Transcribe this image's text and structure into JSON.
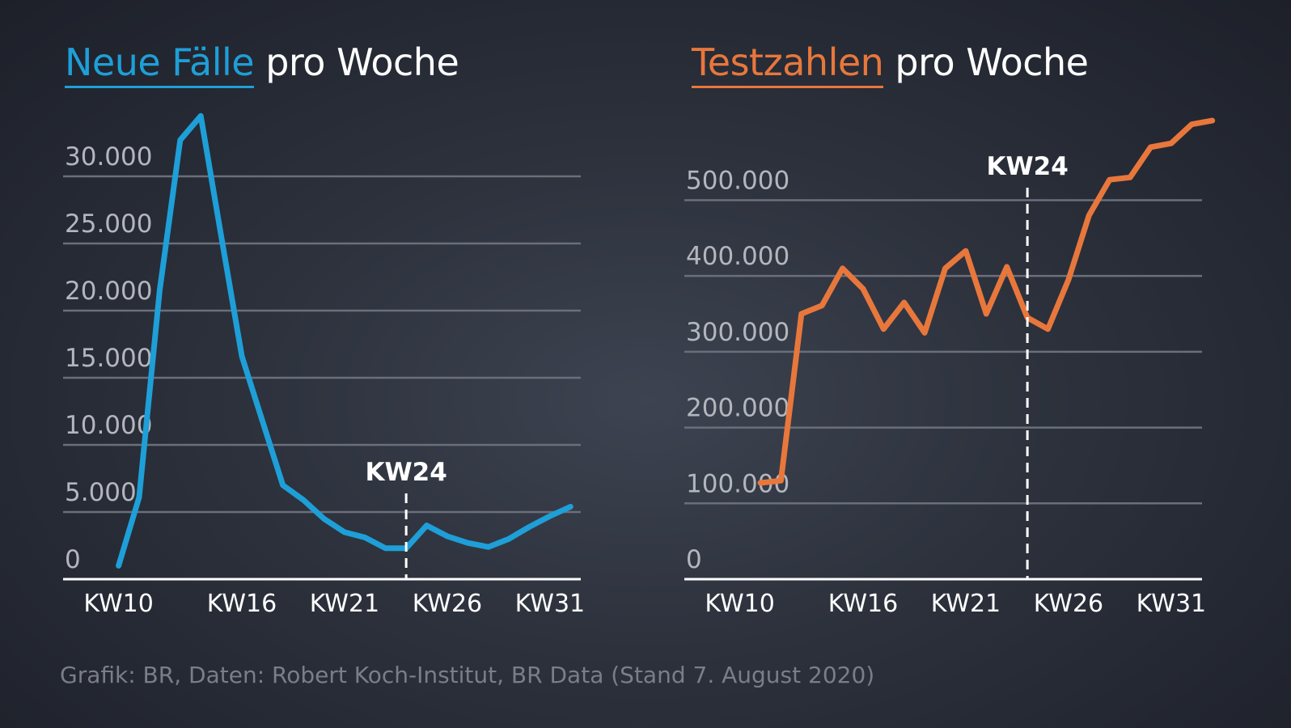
{
  "titles": {
    "left_highlight": "Neue Fälle",
    "left_rest": " pro Woche",
    "right_highlight": "Testzahlen",
    "right_rest": " pro Woche"
  },
  "source": "Grafik: BR, Daten: Robert Koch-Institut, BR Data (Stand 7. August 2020)",
  "colors": {
    "cases": "#1e9fd8",
    "tests": "#e8773c",
    "grid": "#6a6f7a",
    "axis": "#ffffff"
  },
  "chart_data": [
    {
      "type": "line",
      "title": "Neue Fälle pro Woche",
      "x": [
        "KW10",
        "KW11",
        "KW12",
        "KW13",
        "KW14",
        "KW15",
        "KW16",
        "KW17",
        "KW18",
        "KW19",
        "KW20",
        "KW21",
        "KW22",
        "KW23",
        "KW24",
        "KW25",
        "KW26",
        "KW27",
        "KW28",
        "KW29",
        "KW30",
        "KW31",
        "KW32"
      ],
      "series": [
        {
          "values": [
            1000,
            6100,
            21500,
            32700,
            34500,
            25500,
            16600,
            11800,
            7000,
            5900,
            4500,
            3500,
            3100,
            2300,
            2300,
            4000,
            3200,
            2700,
            2400,
            3000,
            3900,
            4700,
            5400
          ]
        }
      ],
      "x_tick_labels": [
        "KW10",
        "KW16",
        "KW21",
        "KW26",
        "KW31"
      ],
      "y_tick_labels": [
        "0",
        "5.000",
        "10.000",
        "15.000",
        "20.000",
        "25.000",
        "30.000"
      ],
      "ylim": [
        0,
        35000
      ],
      "grid": true,
      "marker": {
        "x": "KW24",
        "label": "KW24"
      }
    },
    {
      "type": "line",
      "title": "Testzahlen pro Woche",
      "x": [
        "KW11",
        "KW12",
        "KW13",
        "KW14",
        "KW15",
        "KW16",
        "KW17",
        "KW18",
        "KW19",
        "KW20",
        "KW21",
        "KW22",
        "KW23",
        "KW24",
        "KW25",
        "KW26",
        "KW27",
        "KW28",
        "KW29",
        "KW30",
        "KW31",
        "KW32",
        "KW33"
      ],
      "series": [
        {
          "values": [
            127000,
            130000,
            350000,
            361000,
            410000,
            383000,
            330000,
            365000,
            325000,
            410000,
            433000,
            350000,
            412000,
            345000,
            330000,
            395000,
            480000,
            527000,
            530000,
            570000,
            575000,
            600000,
            605000
          ]
        }
      ],
      "x_tick_labels": [
        "KW10",
        "KW16",
        "KW21",
        "KW26",
        "KW31"
      ],
      "y_tick_labels": [
        "0",
        "100.000",
        "200.000",
        "300.000",
        "400.000",
        "500.000"
      ],
      "ylim": [
        0,
        620000
      ],
      "grid": true,
      "marker": {
        "x": "KW24",
        "label": "KW24"
      }
    }
  ]
}
